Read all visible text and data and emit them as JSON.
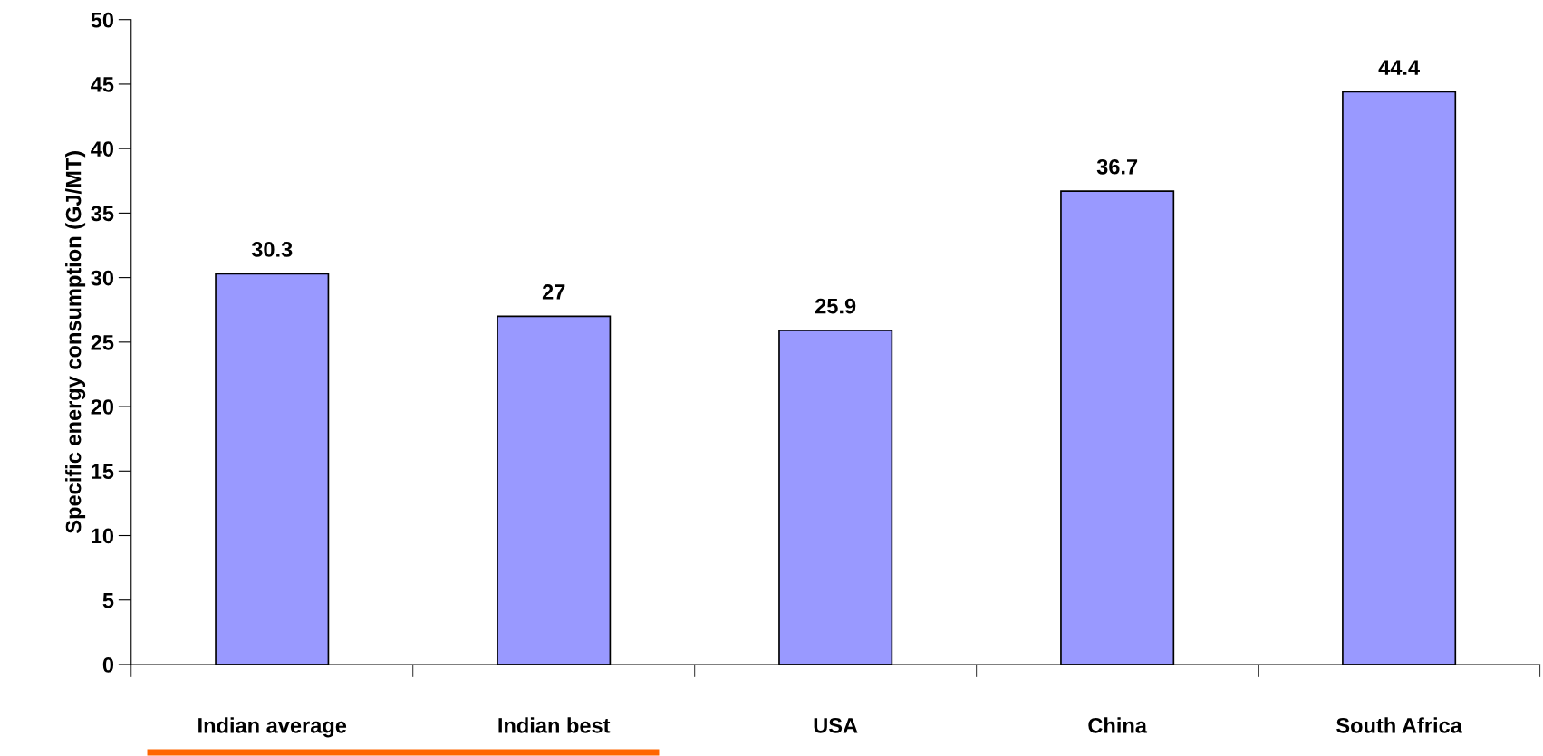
{
  "chart_data": {
    "type": "bar",
    "ylabel": "Specific energy consumption (GJ/MT)",
    "categories": [
      "Indian average",
      "Indian best",
      "USA",
      "China",
      "South Africa"
    ],
    "values": [
      30.3,
      27,
      25.9,
      36.7,
      44.4
    ],
    "color": "#9999ff",
    "ylim": [
      0,
      50
    ],
    "yticks": [
      0,
      5,
      10,
      15,
      20,
      25,
      30,
      35,
      40,
      45,
      50
    ],
    "data_labels": true,
    "grid": false,
    "legend": false
  }
}
